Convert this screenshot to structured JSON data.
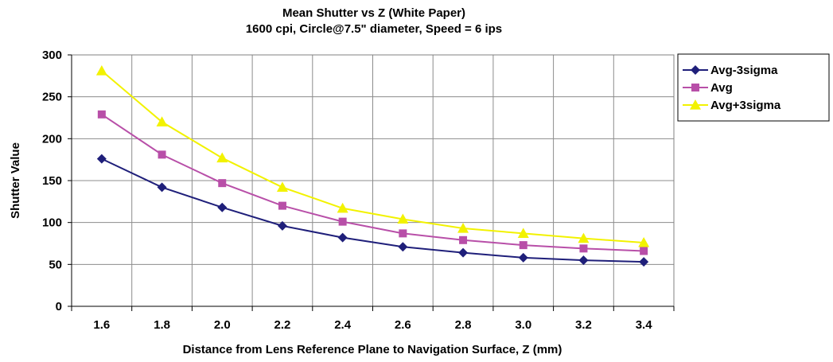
{
  "chart_data": {
    "type": "line",
    "title": "Mean Shutter vs Z (White Paper)",
    "subtitle": "1600 cpi, Circle@7.5\" diameter, Speed = 6 ips",
    "xlabel": "Distance from Lens Reference Plane to Navigation Surface, Z (mm)",
    "ylabel": "Shutter Value",
    "categories": [
      "1.6",
      "1.8",
      "2.0",
      "2.2",
      "2.4",
      "2.6",
      "2.8",
      "3.0",
      "3.2",
      "3.4"
    ],
    "ylim": [
      0,
      300
    ],
    "yticks": [
      "0",
      "50",
      "100",
      "150",
      "200",
      "250",
      "300"
    ],
    "grid": true,
    "legend_position": "right",
    "series": [
      {
        "name": "Avg-3sigma",
        "color": "#1f1f7a",
        "marker": "diamond",
        "values": [
          176,
          142,
          118,
          96,
          82,
          71,
          64,
          58,
          55,
          53
        ]
      },
      {
        "name": "Avg",
        "color": "#b84fa8",
        "marker": "square",
        "values": [
          229,
          181,
          147,
          120,
          101,
          87,
          79,
          73,
          69,
          66
        ]
      },
      {
        "name": "Avg+3sigma",
        "color": "#f2f200",
        "marker": "triangle",
        "values": [
          281,
          220,
          177,
          142,
          117,
          104,
          93,
          87,
          81,
          76
        ]
      }
    ]
  }
}
